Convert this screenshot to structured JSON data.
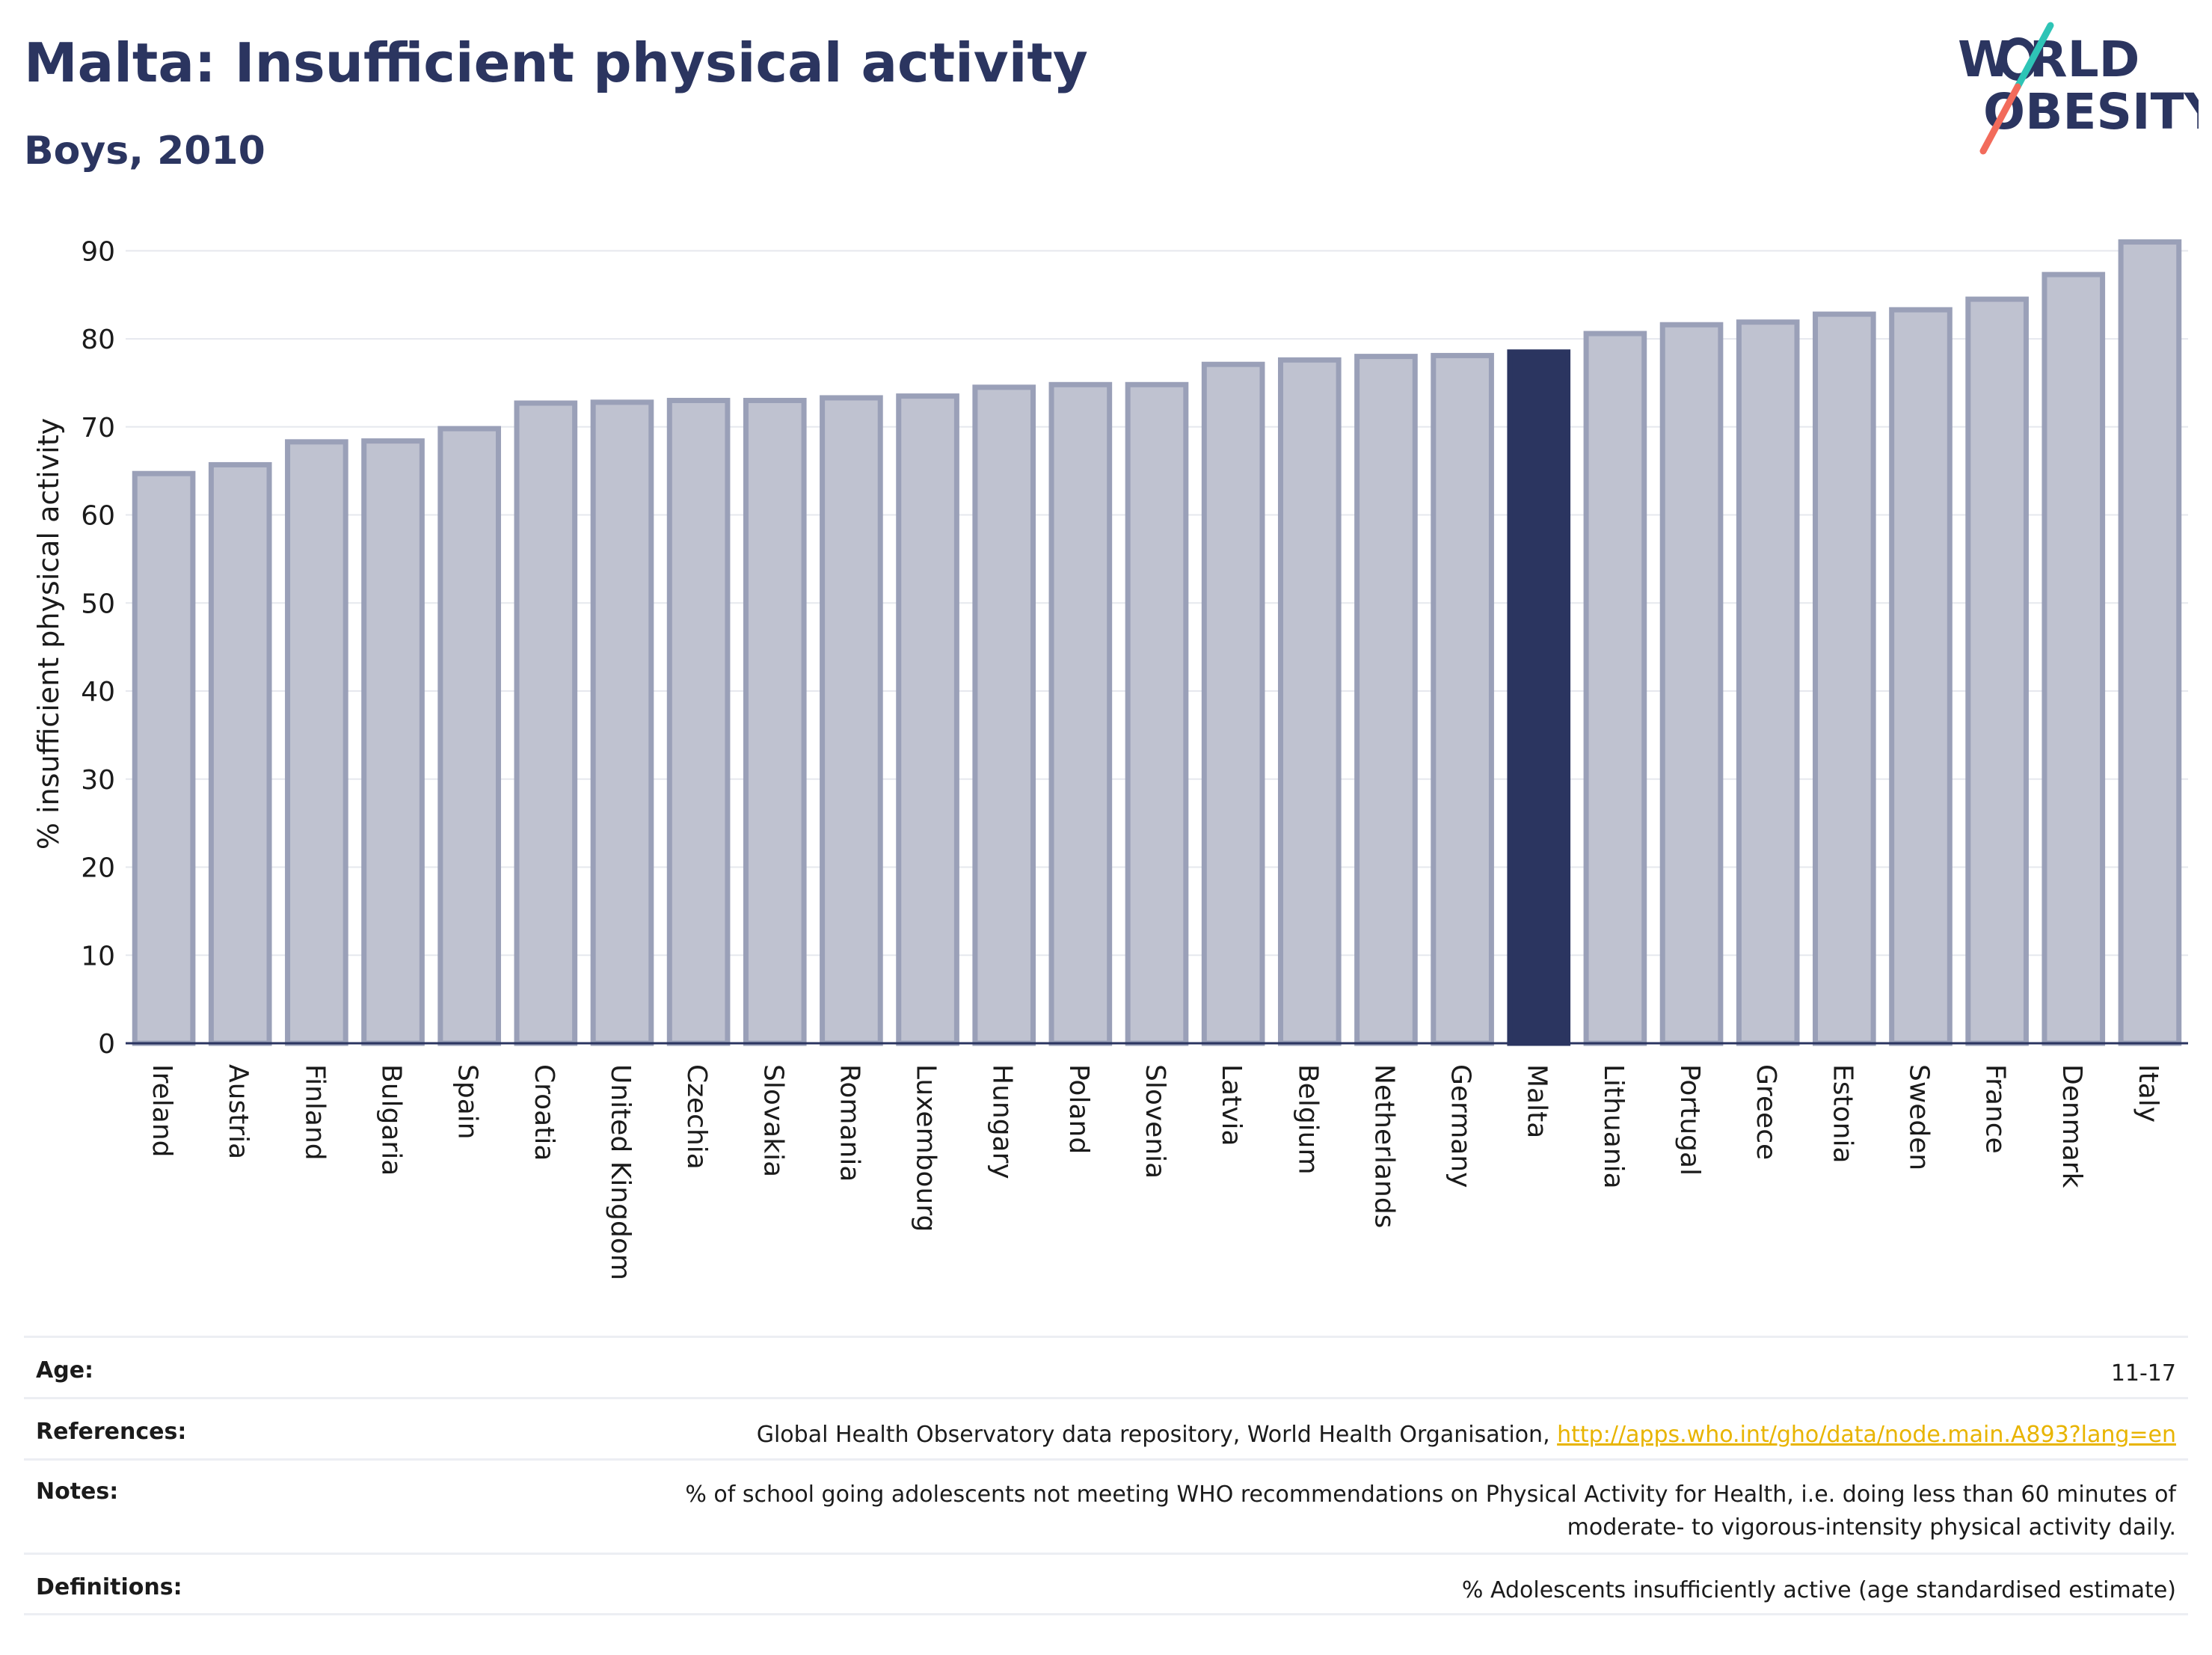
{
  "header": {
    "title": "Malta: Insufficient physical activity",
    "subtitle": "Boys, 2010"
  },
  "logo": {
    "line1": "W RLD",
    "line2": "OBESITY",
    "colors": {
      "text": "#2b3560",
      "slash_top": "#2ec4b6",
      "slash_bottom": "#f26b5b"
    }
  },
  "chart_data": {
    "type": "bar",
    "title": "Malta: Insufficient physical activity",
    "subtitle": "Boys, 2010",
    "xlabel": "",
    "ylabel": "% insufficient physical activity",
    "ylim": [
      0,
      93
    ],
    "yticks": [
      0,
      10,
      20,
      30,
      40,
      50,
      60,
      70,
      80,
      90
    ],
    "grid": true,
    "highlight": "Malta",
    "colors": {
      "bar": "#bfc2d0",
      "bar_edge": "#9aa0b8",
      "highlight": "#2b3560",
      "grid": "#e6e8ee",
      "axis": "#2b3560"
    },
    "categories": [
      "Ireland",
      "Austria",
      "Finland",
      "Bulgaria",
      "Spain",
      "Croatia",
      "United Kingdom",
      "Czechia",
      "Slovakia",
      "Romania",
      "Luxembourg",
      "Hungary",
      "Poland",
      "Slovenia",
      "Latvia",
      "Belgium",
      "Netherlands",
      "Germany",
      "Malta",
      "Lithuania",
      "Portugal",
      "Greece",
      "Estonia",
      "Sweden",
      "France",
      "Denmark",
      "Italy"
    ],
    "values": [
      64.7,
      65.7,
      68.3,
      68.4,
      69.8,
      72.7,
      72.8,
      73.0,
      73.0,
      73.3,
      73.5,
      74.5,
      74.8,
      74.8,
      77.1,
      77.6,
      78.0,
      78.1,
      78.5,
      80.6,
      81.6,
      81.9,
      82.8,
      83.3,
      84.5,
      87.3,
      91.0
    ]
  },
  "info": {
    "age": {
      "label": "Age:",
      "value": "11-17"
    },
    "references": {
      "label": "References:",
      "text": "Global Health Observatory data repository, World Health Organisation, ",
      "link": "http://apps.who.int/gho/data/node.main.A893?lang=en"
    },
    "notes": {
      "label": "Notes:",
      "line1": "% of school going adolescents not meeting WHO recommendations on Physical Activity for Health, i.e. doing less than 60 minutes of",
      "line2": "moderate- to vigorous-intensity physical activity daily."
    },
    "definitions": {
      "label": "Definitions:",
      "value": "% Adolescents insufficiently active (age standardised estimate)"
    }
  }
}
